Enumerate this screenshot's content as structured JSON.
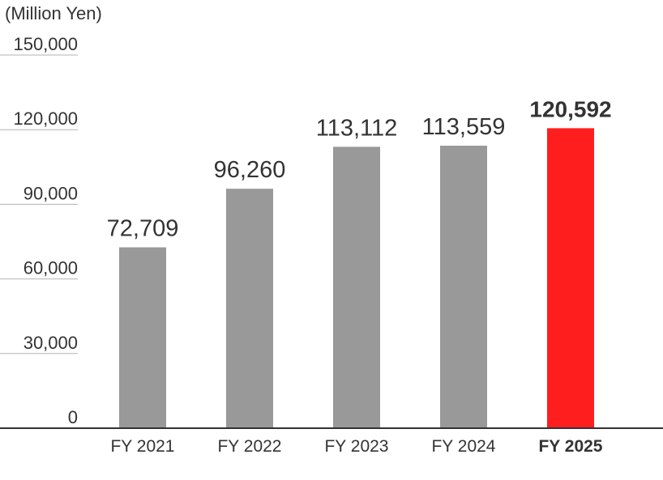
{
  "chart_data": {
    "type": "bar",
    "unit_label": "(Million Yen)",
    "categories": [
      "FY 2021",
      "FY 2022",
      "FY 2023",
      "FY 2024",
      "FY 2025"
    ],
    "values": [
      72709,
      96260,
      113112,
      113559,
      120592
    ],
    "value_labels": [
      "72,709",
      "96,260",
      "113,112",
      "113,559",
      "120,592"
    ],
    "ylim": [
      0,
      150000
    ],
    "yticks": [
      0,
      30000,
      60000,
      90000,
      120000,
      150000
    ],
    "ytick_labels": [
      "0",
      "30,000",
      "60,000",
      "90,000",
      "120,000",
      "150,000"
    ],
    "highlight_index": 4,
    "colors": {
      "bar": "#999999",
      "highlight": "#ff1e1e",
      "axis": "#333333",
      "grid": "#b3b3b3",
      "text": "#333333"
    }
  }
}
